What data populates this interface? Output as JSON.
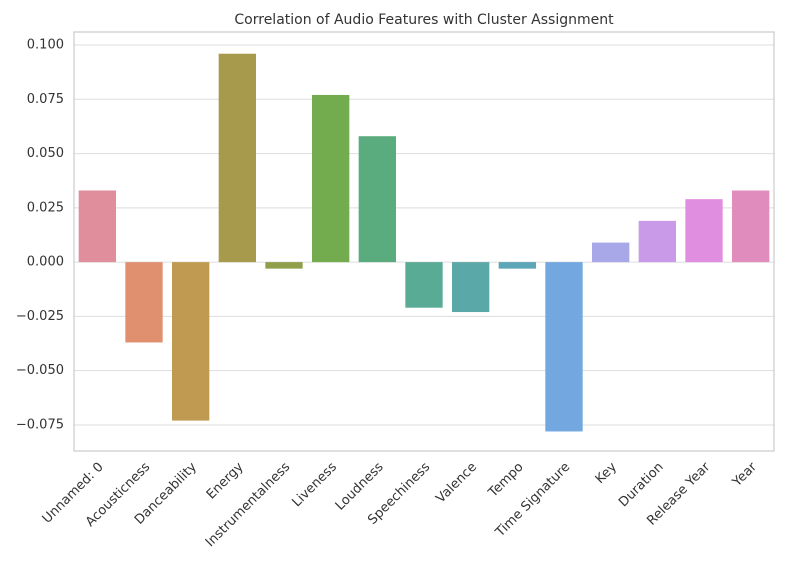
{
  "chart_data": {
    "type": "bar",
    "title": "Correlation of Audio Features with Cluster Assignment",
    "categories": [
      "Unnamed: 0",
      "Acousticness",
      "Danceability",
      "Energy",
      "Instrumentalness",
      "Liveness",
      "Loudness",
      "Speechiness",
      "Valence",
      "Tempo",
      "Time Signature",
      "Key",
      "Duration",
      "Release Year",
      "Year"
    ],
    "values": [
      0.033,
      -0.037,
      -0.073,
      0.096,
      -0.003,
      0.077,
      0.058,
      -0.021,
      -0.023,
      -0.003,
      -0.078,
      0.009,
      0.019,
      0.029,
      0.033
    ],
    "colors": [
      "#e08e9b",
      "#e0906f",
      "#c09a50",
      "#a89a4c",
      "#8f9f4c",
      "#73ac4e",
      "#5aab7d",
      "#5aab95",
      "#5aa8a8",
      "#5ca6b8",
      "#72a8df",
      "#a8a7e8",
      "#c89ae8",
      "#e08ee0",
      "#e08cbc"
    ],
    "ylim": [
      -0.087,
      0.106
    ],
    "yticks": [
      {
        "value": -0.075,
        "label": "−0.075"
      },
      {
        "value": -0.05,
        "label": "−0.050"
      },
      {
        "value": -0.025,
        "label": "−0.025"
      },
      {
        "value": 0,
        "label": "0.000"
      },
      {
        "value": 0.025,
        "label": "0.025"
      },
      {
        "value": 0.05,
        "label": "0.050"
      },
      {
        "value": 0.075,
        "label": "0.075"
      },
      {
        "value": 0.1,
        "label": "0.100"
      }
    ],
    "grid": true
  }
}
